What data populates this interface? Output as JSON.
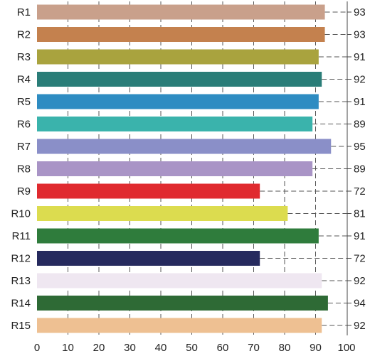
{
  "chart_data": {
    "type": "bar",
    "orientation": "horizontal",
    "categories": [
      "R1",
      "R2",
      "R3",
      "R4",
      "R5",
      "R6",
      "R7",
      "R8",
      "R9",
      "R10",
      "R11",
      "R12",
      "R13",
      "R14",
      "R15"
    ],
    "values": [
      93,
      93,
      91,
      92,
      91,
      89,
      95,
      89,
      72,
      81,
      91,
      72,
      92,
      94,
      92
    ],
    "value_labels": [
      "93",
      "93",
      "91",
      "92",
      "91",
      "89",
      "95",
      "89",
      "72",
      "81",
      "91",
      "72",
      "92",
      "94",
      "92"
    ],
    "colors": [
      "#c9a08b",
      "#c4814e",
      "#a9a33e",
      "#2a7d78",
      "#2e8cc2",
      "#3ab3ac",
      "#8a8fc8",
      "#a994c6",
      "#e02a2f",
      "#dcdc4f",
      "#2f7c3c",
      "#262a5e",
      "#efe7f1",
      "#2e6a35",
      "#eec092"
    ],
    "xlim": [
      0,
      100
    ],
    "xticks": [
      0,
      10,
      20,
      30,
      40,
      50,
      60,
      70,
      80,
      90,
      100
    ],
    "xtick_labels": [
      "0",
      "10",
      "20",
      "30",
      "40",
      "50",
      "60",
      "70",
      "80",
      "90",
      "100"
    ],
    "grid": "vertical dashed",
    "title": "",
    "xlabel": "",
    "ylabel": ""
  }
}
